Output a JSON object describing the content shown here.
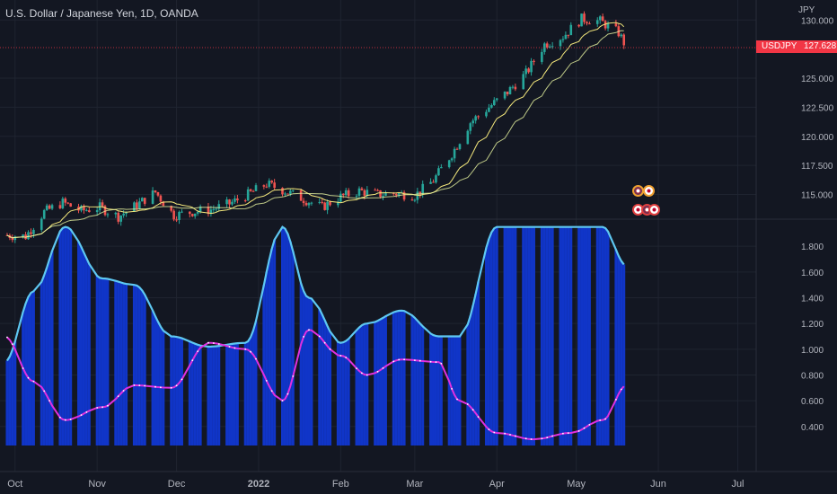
{
  "header": {
    "title": "U.S. Dollar / Japanese Yen, 1D, OANDA",
    "currency": "JPY"
  },
  "price_marker": {
    "symbol": "USDJPY",
    "value": "127.628"
  },
  "colors": {
    "background": "#131722",
    "grid": "#1f2430",
    "candle_up": "#26a69a",
    "candle_down": "#ef5350",
    "ma_fast": "#f4e87c",
    "ma_slow": "#e8f5a0",
    "histogram": "#1035c8",
    "volatility_line": "#5ec8f2",
    "ratio_line": "#e030e0",
    "price_line": "#f23645"
  },
  "events_icons": [
    "us-flag-icon",
    "jp-flag-icon"
  ],
  "chart_data": [
    {
      "type": "candlestick",
      "title": "U.S. Dollar / Japanese Yen, 1D, OANDA",
      "ylabel": "JPY",
      "y_ticks": [
        "115.000",
        "117.500",
        "120.000",
        "122.500",
        "125.000",
        "130.000"
      ],
      "x_ticks": [
        "Oct",
        "Nov",
        "Dec",
        "2022",
        "Feb",
        "Mar",
        "Apr",
        "May",
        "Jun",
        "Jul"
      ],
      "last_price": 127.628,
      "series_close": [
        {
          "date": "2021-09-28",
          "close": 111.5
        },
        {
          "date": "2021-10-05",
          "close": 111.4
        },
        {
          "date": "2021-10-12",
          "close": 113.5
        },
        {
          "date": "2021-10-19",
          "close": 114.3
        },
        {
          "date": "2021-10-26",
          "close": 113.6
        },
        {
          "date": "2021-11-02",
          "close": 113.9
        },
        {
          "date": "2021-11-09",
          "close": 113.1
        },
        {
          "date": "2021-11-16",
          "close": 114.1
        },
        {
          "date": "2021-11-23",
          "close": 115.2
        },
        {
          "date": "2021-11-30",
          "close": 113.2
        },
        {
          "date": "2021-12-07",
          "close": 113.5
        },
        {
          "date": "2021-12-14",
          "close": 113.7
        },
        {
          "date": "2021-12-21",
          "close": 114.2
        },
        {
          "date": "2021-12-28",
          "close": 115.0
        },
        {
          "date": "2022-01-04",
          "close": 115.9
        },
        {
          "date": "2022-01-11",
          "close": 115.3
        },
        {
          "date": "2022-01-18",
          "close": 114.6
        },
        {
          "date": "2022-01-25",
          "close": 113.9
        },
        {
          "date": "2022-02-01",
          "close": 114.8
        },
        {
          "date": "2022-02-08",
          "close": 115.3
        },
        {
          "date": "2022-02-15",
          "close": 115.0
        },
        {
          "date": "2022-02-22",
          "close": 115.1
        },
        {
          "date": "2022-03-01",
          "close": 114.9
        },
        {
          "date": "2022-03-08",
          "close": 116.2
        },
        {
          "date": "2022-03-15",
          "close": 118.5
        },
        {
          "date": "2022-03-22",
          "close": 121.2
        },
        {
          "date": "2022-03-29",
          "close": 122.5
        },
        {
          "date": "2022-04-05",
          "close": 123.8
        },
        {
          "date": "2022-04-12",
          "close": 125.4
        },
        {
          "date": "2022-04-19",
          "close": 127.9
        },
        {
          "date": "2022-04-26",
          "close": 128.6
        },
        {
          "date": "2022-05-03",
          "close": 130.1
        },
        {
          "date": "2022-05-10",
          "close": 129.9
        },
        {
          "date": "2022-05-17",
          "close": 128.9
        },
        {
          "date": "2022-05-20",
          "close": 127.628
        }
      ]
    },
    {
      "type": "area",
      "title": "",
      "y_ticks": [
        "0.400",
        "0.600",
        "0.800",
        "1.000",
        "1.200",
        "1.400",
        "1.600",
        "1.800"
      ],
      "ylim": [
        0.3,
        1.95
      ],
      "series": [
        {
          "type": "histogram",
          "x": [
            "2021-09-27",
            "2021-10-08",
            "2021-10-20",
            "2021-11-03",
            "2021-11-15",
            "2021-11-29",
            "2021-12-13",
            "2021-12-27",
            "2022-01-10",
            "2022-01-20",
            "2022-02-01",
            "2022-02-11",
            "2022-02-24",
            "2022-03-10",
            "2022-03-18",
            "2022-04-01",
            "2022-04-15",
            "2022-04-29",
            "2022-05-11",
            "2022-05-20"
          ],
          "values": [
            0.9,
            1.45,
            1.95,
            1.55,
            1.5,
            1.1,
            1.02,
            1.05,
            1.95,
            1.4,
            1.05,
            1.2,
            1.3,
            1.1,
            1.1,
            1.95,
            1.95,
            1.95,
            1.95,
            1.65
          ]
        },
        {
          "type": "line",
          "x": [
            "2021-09-27",
            "2021-10-08",
            "2021-10-20",
            "2021-11-03",
            "2021-11-15",
            "2021-11-29",
            "2021-12-13",
            "2021-12-27",
            "2022-01-10",
            "2022-01-20",
            "2022-02-01",
            "2022-02-11",
            "2022-02-24",
            "2022-03-10",
            "2022-03-18",
            "2022-04-01",
            "2022-04-15",
            "2022-04-29",
            "2022-05-11",
            "2022-05-20"
          ],
          "values": [
            0.9,
            1.45,
            1.95,
            1.55,
            1.5,
            1.1,
            1.02,
            1.05,
            1.95,
            1.4,
            1.05,
            1.2,
            1.3,
            1.1,
            1.1,
            1.95,
            1.95,
            1.95,
            1.95,
            1.65
          ]
        },
        {
          "type": "line",
          "x": [
            "2021-09-27",
            "2021-10-08",
            "2021-10-20",
            "2021-11-03",
            "2021-11-15",
            "2021-11-29",
            "2021-12-13",
            "2021-12-27",
            "2022-01-10",
            "2022-01-20",
            "2022-02-01",
            "2022-02-11",
            "2022-02-24",
            "2022-03-10",
            "2022-03-18",
            "2022-04-01",
            "2022-04-15",
            "2022-04-29",
            "2022-05-11",
            "2022-05-20"
          ],
          "values": [
            1.1,
            0.75,
            0.45,
            0.55,
            0.72,
            0.7,
            1.05,
            1.0,
            0.6,
            1.15,
            0.95,
            0.8,
            0.92,
            0.9,
            0.6,
            0.35,
            0.3,
            0.35,
            0.45,
            0.72
          ]
        }
      ]
    }
  ]
}
